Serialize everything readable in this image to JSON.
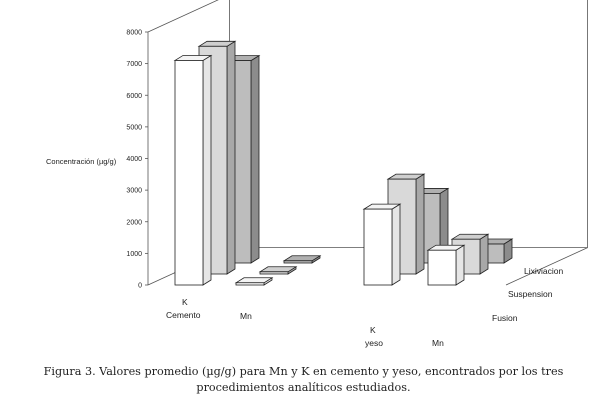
{
  "chart_data": {
    "type": "bar",
    "title": "",
    "ylabel": "Concentración (µg/g)",
    "ylim": [
      0,
      8000
    ],
    "yticks": [
      0,
      1000,
      2000,
      3000,
      4000,
      5000,
      6000,
      7000,
      8000
    ],
    "groups": [
      {
        "element": "K",
        "matrix": "Cemento"
      },
      {
        "element": "Mn",
        "matrix": ""
      },
      {
        "element": "K",
        "matrix": "yeso"
      },
      {
        "element": "Mn",
        "matrix": ""
      }
    ],
    "series": [
      {
        "name": "Fusion",
        "values": [
          7100,
          0,
          2400,
          1100
        ]
      },
      {
        "name": "Suspension",
        "values": [
          7200,
          0,
          3000,
          1100
        ]
      },
      {
        "name": "Lixiviacion",
        "values": [
          6400,
          0,
          2200,
          600
        ]
      }
    ],
    "colors": {
      "Fusion": "#ffffff",
      "Suspension": "#d9d9d9",
      "Lixiviacion": "#bdbdbd"
    }
  },
  "caption": {
    "line1": "Figura 3. Valores promedio (µg/g) para Mn y K en cemento y yeso, encontrados por los tres",
    "line2": "procedimientos analíticos estudiados."
  }
}
